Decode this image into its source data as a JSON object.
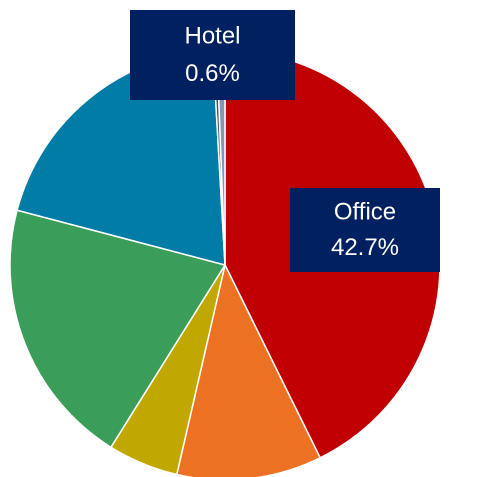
{
  "chart_data": {
    "type": "pie",
    "categories": [
      "Office",
      null,
      null,
      null,
      null,
      null,
      "Hotel"
    ],
    "values": [
      42.7,
      10.9,
      5.3,
      20.2,
      20.0,
      0.3,
      0.6
    ],
    "value_labels": [
      "42.7%",
      null,
      null,
      null,
      null,
      null,
      "0.6%"
    ],
    "colors": [
      "#c00000",
      "#ed7123",
      "#c0a800",
      "#3a9e5a",
      "#007ca6",
      "#44546a",
      "#8497b0"
    ],
    "label_color": "#002060"
  }
}
